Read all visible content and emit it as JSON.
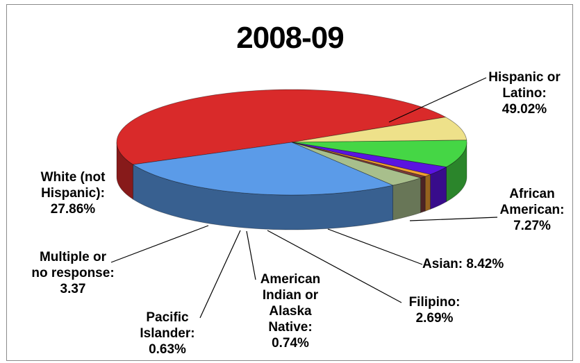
{
  "chart_data": {
    "type": "pie",
    "title": "2008-09",
    "slices": [
      {
        "name": "Hispanic or Latino",
        "value": 49.02,
        "color": "#d92a2a",
        "label_lines": [
          "Hispanic or",
          "Latino:",
          "49.02%"
        ]
      },
      {
        "name": "African American",
        "value": 7.27,
        "color": "#eee18a",
        "label_lines": [
          "African",
          "American:",
          "7.27%"
        ]
      },
      {
        "name": "Asian",
        "value": 8.42,
        "color": "#45d645",
        "label_lines": [
          "Asian: 8.42%"
        ]
      },
      {
        "name": "Filipino",
        "value": 2.69,
        "color": "#5a14e0",
        "label_lines": [
          "Filipino:",
          "2.69%"
        ]
      },
      {
        "name": "American Indian or Alaska Native",
        "value": 0.74,
        "color": "#f0a030",
        "label_lines": [
          "American",
          "Indian or",
          "Alaska",
          "Native:",
          "0.74%"
        ]
      },
      {
        "name": "Pacific Islander",
        "value": 0.63,
        "color": "#7a3a3a",
        "label_lines": [
          "Pacific",
          "Islander:",
          "0.63%"
        ]
      },
      {
        "name": "Multiple or no response",
        "value": 3.37,
        "color": "#a8bf8c",
        "label_lines": [
          "Multiple or",
          "no response:",
          "3.37"
        ]
      },
      {
        "name": "White (not Hispanic)",
        "value": 27.86,
        "color": "#5b9be8",
        "label_lines": [
          "White (not",
          "Hispanic):",
          "27.86%"
        ]
      }
    ]
  }
}
